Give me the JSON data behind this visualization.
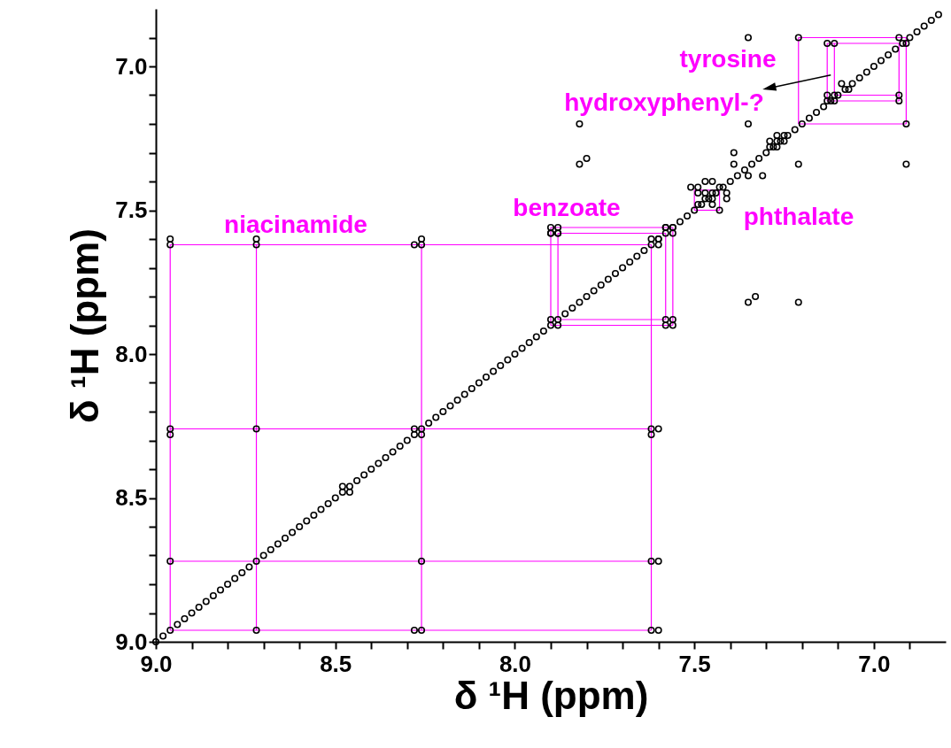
{
  "chart_data": {
    "type": "scatter",
    "xlabel": "δ ¹H (ppm)",
    "ylabel": "δ ¹H (ppm)",
    "xlim": [
      9.0,
      6.8
    ],
    "ylim": [
      9.0,
      6.8
    ],
    "xticks": [
      {
        "value": 9,
        "label": "9.0"
      },
      {
        "value": 8.9,
        "label": null
      },
      {
        "value": 8.8,
        "label": null
      },
      {
        "value": 8.7,
        "label": null
      },
      {
        "value": 8.6,
        "label": null
      },
      {
        "value": 8.5,
        "label": "8.5"
      },
      {
        "value": 8.4,
        "label": null
      },
      {
        "value": 8.3,
        "label": null
      },
      {
        "value": 8.2,
        "label": null
      },
      {
        "value": 8.1,
        "label": null
      },
      {
        "value": 8,
        "label": "8.0"
      },
      {
        "value": 7.9,
        "label": null
      },
      {
        "value": 7.8,
        "label": null
      },
      {
        "value": 7.7,
        "label": null
      },
      {
        "value": 7.6,
        "label": null
      },
      {
        "value": 7.5,
        "label": "7.5"
      },
      {
        "value": 7.4,
        "label": null
      },
      {
        "value": 7.3,
        "label": null
      },
      {
        "value": 7.2,
        "label": null
      },
      {
        "value": 7.1,
        "label": null
      },
      {
        "value": 7,
        "label": "7.0"
      },
      {
        "value": 6.9,
        "label": null
      }
    ],
    "yticks": [
      {
        "value": 9,
        "label": "9.0"
      },
      {
        "value": 8.9,
        "label": null
      },
      {
        "value": 8.8,
        "label": null
      },
      {
        "value": 8.7,
        "label": null
      },
      {
        "value": 8.6,
        "label": null
      },
      {
        "value": 8.5,
        "label": "8.5"
      },
      {
        "value": 8.4,
        "label": null
      },
      {
        "value": 8.3,
        "label": null
      },
      {
        "value": 8.2,
        "label": null
      },
      {
        "value": 8.1,
        "label": null
      },
      {
        "value": 8,
        "label": "8.0"
      },
      {
        "value": 7.9,
        "label": null
      },
      {
        "value": 7.8,
        "label": null
      },
      {
        "value": 7.7,
        "label": null
      },
      {
        "value": 7.6,
        "label": null
      },
      {
        "value": 7.5,
        "label": "7.5"
      },
      {
        "value": 7.4,
        "label": null
      },
      {
        "value": 7.3,
        "label": null
      },
      {
        "value": 7.2,
        "label": null
      },
      {
        "value": 7.1,
        "label": null
      },
      {
        "value": 7,
        "label": "7.0"
      },
      {
        "value": 6.9,
        "label": null
      }
    ],
    "grid": false,
    "series": [
      {
        "type": "line",
        "color": "#ff00ff",
        "x": [
          8.96,
          8.96
        ],
        "values": [
          7.62,
          8.96
        ]
      },
      {
        "type": "line",
        "color": "#ff00ff",
        "x": [
          8.72,
          8.72
        ],
        "values": [
          7.62,
          8.96
        ]
      },
      {
        "type": "line",
        "color": "#ff00ff",
        "x": [
          8.26,
          8.26
        ],
        "values": [
          7.62,
          8.96
        ]
      },
      {
        "type": "line",
        "color": "#ff00ff",
        "x": [
          7.62,
          7.62
        ],
        "values": [
          7.62,
          8.96
        ]
      },
      {
        "type": "line",
        "color": "#ff00ff",
        "x": [
          8.96,
          7.62
        ],
        "values": [
          7.62,
          7.62
        ]
      },
      {
        "type": "line",
        "color": "#ff00ff",
        "x": [
          8.96,
          7.62
        ],
        "values": [
          8.26,
          8.26
        ]
      },
      {
        "type": "line",
        "color": "#ff00ff",
        "x": [
          8.96,
          7.62
        ],
        "values": [
          8.72,
          8.72
        ]
      },
      {
        "type": "line",
        "color": "#ff00ff",
        "x": [
          8.96,
          7.62
        ],
        "values": [
          8.96,
          8.96
        ]
      },
      {
        "type": "line",
        "color": "#ff00ff",
        "x": [
          7.9,
          7.56
        ],
        "values": [
          7.56,
          7.56
        ]
      },
      {
        "type": "line",
        "color": "#ff00ff",
        "x": [
          7.9,
          7.56
        ],
        "values": [
          7.9,
          7.9
        ]
      },
      {
        "type": "line",
        "color": "#ff00ff",
        "x": [
          7.9,
          7.9
        ],
        "values": [
          7.56,
          7.9
        ]
      },
      {
        "type": "line",
        "color": "#ff00ff",
        "x": [
          7.56,
          7.56
        ],
        "values": [
          7.56,
          7.9
        ]
      },
      {
        "type": "line",
        "color": "#ff00ff",
        "x": [
          7.88,
          7.58
        ],
        "values": [
          7.58,
          7.58
        ]
      },
      {
        "type": "line",
        "color": "#ff00ff",
        "x": [
          7.88,
          7.58
        ],
        "values": [
          7.88,
          7.88
        ]
      },
      {
        "type": "line",
        "color": "#ff00ff",
        "x": [
          7.88,
          7.88
        ],
        "values": [
          7.58,
          7.88
        ]
      },
      {
        "type": "line",
        "color": "#ff00ff",
        "x": [
          7.58,
          7.58
        ],
        "values": [
          7.58,
          7.88
        ]
      },
      {
        "type": "line",
        "color": "#ff00ff",
        "x": [
          7.5,
          7.43
        ],
        "values": [
          7.43,
          7.43
        ]
      },
      {
        "type": "line",
        "color": "#ff00ff",
        "x": [
          7.5,
          7.43
        ],
        "values": [
          7.5,
          7.5
        ]
      },
      {
        "type": "line",
        "color": "#ff00ff",
        "x": [
          7.5,
          7.5
        ],
        "values": [
          7.43,
          7.5
        ]
      },
      {
        "type": "line",
        "color": "#ff00ff",
        "x": [
          7.43,
          7.43
        ],
        "values": [
          7.43,
          7.5
        ]
      },
      {
        "type": "line",
        "color": "#ff00ff",
        "x": [
          7.21,
          6.91
        ],
        "values": [
          6.9,
          6.9
        ]
      },
      {
        "type": "line",
        "color": "#ff00ff",
        "x": [
          7.21,
          6.91
        ],
        "values": [
          7.2,
          7.2
        ]
      },
      {
        "type": "line",
        "color": "#ff00ff",
        "x": [
          7.21,
          7.21
        ],
        "values": [
          6.9,
          7.2
        ]
      },
      {
        "type": "line",
        "color": "#ff00ff",
        "x": [
          6.91,
          6.91
        ],
        "values": [
          6.9,
          7.2
        ]
      },
      {
        "type": "line",
        "color": "#ff00ff",
        "x": [
          7.13,
          6.93
        ],
        "values": [
          6.92,
          6.92
        ]
      },
      {
        "type": "line",
        "color": "#ff00ff",
        "x": [
          7.13,
          6.93
        ],
        "values": [
          7.12,
          7.12
        ]
      },
      {
        "type": "line",
        "color": "#ff00ff",
        "x": [
          7.13,
          7.13
        ],
        "values": [
          6.92,
          7.12
        ]
      },
      {
        "type": "line",
        "color": "#ff00ff",
        "x": [
          6.93,
          6.93
        ],
        "values": [
          6.92,
          7.12
        ]
      },
      {
        "type": "line",
        "color": "#ff00ff",
        "x": [
          7.11,
          6.93
        ],
        "values": [
          7.1,
          7.1
        ]
      },
      {
        "type": "line",
        "color": "#ff00ff",
        "x": [
          7.11,
          7.11
        ],
        "values": [
          6.92,
          7.1
        ]
      },
      {
        "color": "#000000",
        "marker": "circle",
        "x": [
          9,
          8.98,
          8.96,
          8.94,
          8.92,
          8.9,
          8.88,
          8.86,
          8.84,
          8.82,
          8.8,
          8.78,
          8.76,
          8.74,
          8.72,
          8.7,
          8.68,
          8.66,
          8.64,
          8.62,
          8.6,
          8.58,
          8.56,
          8.54,
          8.52,
          8.5,
          8.48,
          8.46,
          8.44,
          8.42,
          8.4,
          8.38,
          8.36,
          8.34,
          8.32,
          8.3,
          8.28,
          8.26,
          8.24,
          8.22,
          8.2,
          8.18,
          8.16,
          8.14,
          8.12,
          8.1,
          8.08,
          8.06,
          8.04,
          8.02,
          8,
          7.98,
          7.96,
          7.94,
          7.92,
          7.9,
          7.88,
          7.86,
          7.84,
          7.82,
          7.8,
          7.78,
          7.76,
          7.74,
          7.72,
          7.7,
          7.68,
          7.66,
          7.64,
          7.62,
          7.6,
          7.58,
          7.56,
          7.54,
          7.52,
          7.5,
          7.48,
          7.46,
          7.44,
          7.42,
          7.4,
          7.38,
          7.36,
          7.34,
          7.32,
          7.3,
          7.28,
          7.26,
          7.24,
          7.22,
          7.2,
          7.18,
          7.16,
          7.14,
          7.12,
          7.1,
          7.08,
          7.06,
          7.04,
          7.02,
          7,
          6.98,
          6.96,
          6.94,
          6.92,
          6.9,
          6.88,
          6.86,
          6.84,
          6.82
        ],
        "values": [
          9,
          8.98,
          8.96,
          8.94,
          8.92,
          8.9,
          8.88,
          8.86,
          8.84,
          8.82,
          8.8,
          8.78,
          8.76,
          8.74,
          8.72,
          8.7,
          8.68,
          8.66,
          8.64,
          8.62,
          8.6,
          8.58,
          8.56,
          8.54,
          8.52,
          8.5,
          8.48,
          8.46,
          8.44,
          8.42,
          8.4,
          8.38,
          8.36,
          8.34,
          8.32,
          8.3,
          8.28,
          8.26,
          8.24,
          8.22,
          8.2,
          8.18,
          8.16,
          8.14,
          8.12,
          8.1,
          8.08,
          8.06,
          8.04,
          8.02,
          8,
          7.98,
          7.96,
          7.94,
          7.92,
          7.9,
          7.88,
          7.86,
          7.84,
          7.82,
          7.8,
          7.78,
          7.76,
          7.74,
          7.72,
          7.7,
          7.68,
          7.66,
          7.64,
          7.62,
          7.6,
          7.58,
          7.56,
          7.54,
          7.52,
          7.5,
          7.48,
          7.46,
          7.44,
          7.42,
          7.4,
          7.38,
          7.36,
          7.34,
          7.32,
          7.3,
          7.28,
          7.26,
          7.24,
          7.22,
          7.2,
          7.18,
          7.16,
          7.14,
          7.12,
          7.1,
          7.08,
          7.06,
          7.04,
          7.02,
          7,
          6.98,
          6.96,
          6.94,
          6.92,
          6.9,
          6.88,
          6.86,
          6.84,
          6.82
        ]
      },
      {
        "color": "#000000",
        "marker": "circle",
        "x": [
          8.96,
          8.96,
          8.96,
          8.96,
          8.96,
          8.72,
          8.72,
          8.72,
          8.72,
          8.28,
          8.26,
          8.26,
          8.28,
          8.26,
          8.26,
          8.28,
          8.26,
          8.48,
          8.46,
          7.62,
          7.6,
          7.6,
          7.62,
          7.6,
          7.62,
          7.62,
          7.6,
          7.62,
          7.6,
          7.9,
          7.88,
          7.9,
          7.88,
          7.9,
          7.88,
          7.58,
          7.56,
          7.58,
          7.56,
          7.58,
          7.56,
          7.9,
          7.88,
          7.58,
          7.56,
          7.51,
          7.49,
          7.47,
          7.45,
          7.49,
          7.47,
          7.45,
          7.43,
          7.41,
          7.47,
          7.45,
          7.41,
          7.49,
          7.45,
          7.43,
          7.35,
          7.21,
          7.13,
          7.11,
          6.93,
          6.91,
          7.09,
          7.07,
          7.13,
          7.11,
          7.13,
          7.11,
          6.93,
          6.93,
          7.35,
          6.91,
          7.39,
          7.39,
          7.35,
          7.31,
          7.21,
          6.91,
          7.27,
          7.25,
          7.29,
          7.27,
          7.25,
          7.29,
          7.27,
          7.35,
          7.33,
          7.21,
          7.82,
          7.82,
          7.8
        ],
        "values": [
          7.6,
          7.62,
          8.26,
          8.28,
          8.72,
          7.6,
          7.62,
          8.26,
          8.96,
          7.62,
          7.6,
          7.62,
          8.26,
          8.28,
          8.72,
          8.96,
          8.96,
          8.46,
          8.48,
          7.6,
          7.6,
          7.62,
          8.26,
          8.26,
          8.28,
          8.72,
          8.72,
          8.96,
          8.96,
          7.56,
          7.56,
          7.58,
          7.58,
          7.88,
          7.9,
          7.88,
          7.88,
          7.9,
          7.9,
          7.56,
          7.58,
          7.58,
          7.58,
          7.56,
          7.56,
          7.42,
          7.42,
          7.4,
          7.4,
          7.44,
          7.44,
          7.44,
          7.42,
          7.44,
          7.46,
          7.46,
          7.46,
          7.48,
          7.48,
          7.5,
          6.9,
          6.9,
          6.92,
          6.92,
          6.9,
          6.92,
          7.06,
          7.08,
          7.1,
          7.1,
          7.12,
          7.12,
          7.1,
          7.12,
          7.2,
          7.2,
          7.3,
          7.34,
          7.38,
          7.38,
          7.34,
          7.34,
          7.24,
          7.24,
          7.26,
          7.26,
          7.26,
          7.28,
          7.28,
          7.82,
          7.8,
          7.82,
          7.2,
          7.34,
          7.32
        ]
      }
    ],
    "annotations": [
      "niacinamide",
      "benzoate",
      "phthalate",
      "tyrosine",
      "hydroxyphenyl-?"
    ]
  }
}
